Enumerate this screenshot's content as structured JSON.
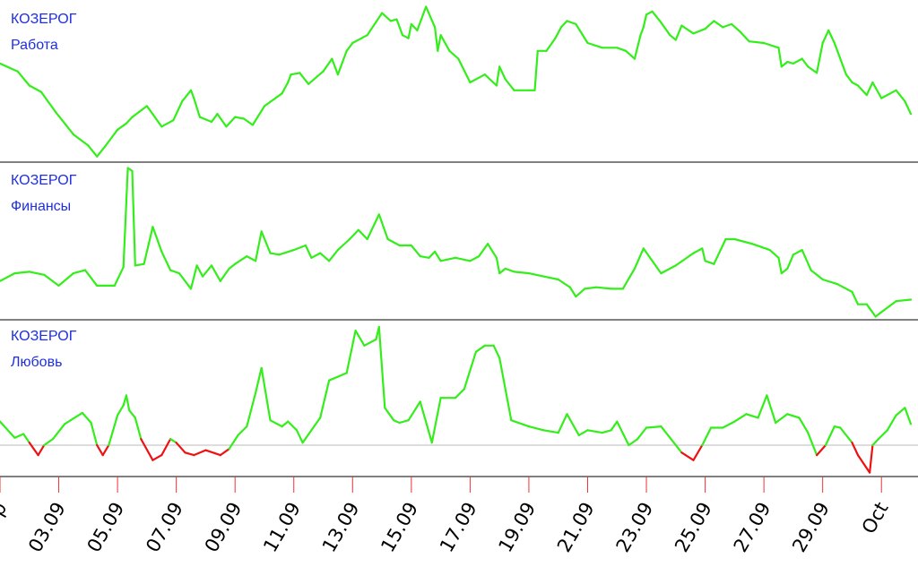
{
  "chart_data": {
    "type": "line",
    "x_axis": {
      "tick_labels": [
        "Sep",
        "03.09",
        "05.09",
        "07.09",
        "09.09",
        "11.09",
        "13.09",
        "15.09",
        "17.09",
        "19.09",
        "21.09",
        "23.09",
        "25.09",
        "27.09",
        "29.09",
        "Oct"
      ],
      "label_rotation_deg": -60
    },
    "colors": {
      "line_positive": "#33ee1a",
      "line_negative": "#ee1111",
      "panel_title": "#1f2fe0",
      "separator": "#000000",
      "tick": "#ee3333",
      "baseline": "#bbbbbb"
    },
    "panels": [
      {
        "name": "work",
        "title": [
          "КОЗЕРОГ",
          "Работа"
        ],
        "ylim": [
          0,
          100
        ],
        "baseline": null,
        "points": [
          [
            0.0,
            62
          ],
          [
            0.6,
            57
          ],
          [
            1.0,
            48
          ],
          [
            1.4,
            44
          ],
          [
            1.9,
            31
          ],
          [
            2.5,
            17
          ],
          [
            3.0,
            10
          ],
          [
            3.3,
            3
          ],
          [
            3.6,
            10
          ],
          [
            4.0,
            20
          ],
          [
            4.3,
            24
          ],
          [
            4.5,
            28
          ],
          [
            5.0,
            35
          ],
          [
            5.5,
            22
          ],
          [
            5.9,
            26
          ],
          [
            6.2,
            38
          ],
          [
            6.5,
            45
          ],
          [
            6.6,
            40
          ],
          [
            6.8,
            28
          ],
          [
            7.2,
            25
          ],
          [
            7.4,
            30
          ],
          [
            7.7,
            22
          ],
          [
            8.0,
            28
          ],
          [
            8.3,
            27
          ],
          [
            8.6,
            23
          ],
          [
            9.0,
            35
          ],
          [
            9.6,
            43
          ],
          [
            9.8,
            50
          ],
          [
            9.9,
            55
          ],
          [
            10.2,
            56
          ],
          [
            10.5,
            49
          ],
          [
            11.0,
            57
          ],
          [
            11.3,
            65
          ],
          [
            11.5,
            55
          ],
          [
            11.8,
            70
          ],
          [
            12.0,
            75
          ],
          [
            12.5,
            80
          ],
          [
            13.0,
            94
          ],
          [
            13.3,
            89
          ],
          [
            13.5,
            90
          ],
          [
            13.7,
            80
          ],
          [
            13.9,
            78
          ],
          [
            14.0,
            87
          ],
          [
            14.2,
            83
          ],
          [
            14.5,
            98
          ],
          [
            14.8,
            85
          ],
          [
            14.9,
            70
          ],
          [
            15.0,
            80
          ],
          [
            15.3,
            70
          ],
          [
            15.6,
            65
          ],
          [
            16.0,
            50
          ],
          [
            16.5,
            55
          ],
          [
            16.9,
            48
          ],
          [
            17.0,
            60
          ],
          [
            17.2,
            52
          ],
          [
            17.5,
            45
          ],
          [
            18.0,
            45
          ],
          [
            18.2,
            45
          ],
          [
            18.3,
            70
          ],
          [
            18.6,
            70
          ],
          [
            18.9,
            78
          ],
          [
            19.1,
            85
          ],
          [
            19.3,
            89
          ],
          [
            19.6,
            87
          ],
          [
            20.0,
            75
          ],
          [
            20.5,
            72
          ],
          [
            21.0,
            72
          ],
          [
            21.3,
            70
          ],
          [
            21.6,
            65
          ],
          [
            21.8,
            80
          ],
          [
            21.9,
            85
          ],
          [
            22.0,
            93
          ],
          [
            22.2,
            95
          ],
          [
            22.5,
            88
          ],
          [
            22.8,
            80
          ],
          [
            23.0,
            77
          ],
          [
            23.2,
            86
          ],
          [
            23.6,
            81
          ],
          [
            24.0,
            84
          ],
          [
            24.3,
            89
          ],
          [
            24.6,
            85
          ],
          [
            24.9,
            87
          ],
          [
            25.2,
            82
          ],
          [
            25.5,
            76
          ],
          [
            26.0,
            75
          ],
          [
            26.5,
            72
          ],
          [
            26.6,
            60
          ],
          [
            26.8,
            63
          ],
          [
            27.0,
            62
          ],
          [
            27.3,
            65
          ],
          [
            27.5,
            60
          ],
          [
            27.8,
            56
          ],
          [
            28.0,
            75
          ],
          [
            28.2,
            83
          ],
          [
            28.4,
            75
          ],
          [
            28.8,
            55
          ],
          [
            29.0,
            50
          ],
          [
            29.2,
            48
          ],
          [
            29.5,
            42
          ],
          [
            29.7,
            50
          ],
          [
            30.0,
            40
          ],
          [
            30.5,
            45
          ],
          [
            30.8,
            38
          ],
          [
            31.0,
            30
          ]
        ]
      },
      {
        "name": "finance",
        "title": [
          "КОЗЕРОГ",
          "Финансы"
        ],
        "ylim": [
          0,
          100
        ],
        "baseline": null,
        "points": [
          [
            0.0,
            25
          ],
          [
            0.5,
            30
          ],
          [
            1.0,
            31
          ],
          [
            1.5,
            29
          ],
          [
            2.0,
            22
          ],
          [
            2.5,
            30
          ],
          [
            2.9,
            32
          ],
          [
            3.3,
            22
          ],
          [
            3.6,
            22
          ],
          [
            3.9,
            22
          ],
          [
            4.2,
            34
          ],
          [
            4.35,
            98
          ],
          [
            4.5,
            96
          ],
          [
            4.6,
            35
          ],
          [
            4.9,
            36
          ],
          [
            5.2,
            60
          ],
          [
            5.5,
            44
          ],
          [
            5.8,
            32
          ],
          [
            6.1,
            30
          ],
          [
            6.5,
            20
          ],
          [
            6.7,
            35
          ],
          [
            6.9,
            28
          ],
          [
            7.2,
            35
          ],
          [
            7.5,
            25
          ],
          [
            7.8,
            33
          ],
          [
            8.0,
            36
          ],
          [
            8.4,
            41
          ],
          [
            8.7,
            38
          ],
          [
            8.9,
            57
          ],
          [
            9.2,
            43
          ],
          [
            9.5,
            42
          ],
          [
            10.0,
            45
          ],
          [
            10.4,
            48
          ],
          [
            10.6,
            40
          ],
          [
            10.9,
            43
          ],
          [
            11.2,
            38
          ],
          [
            11.5,
            45
          ],
          [
            11.9,
            52
          ],
          [
            12.2,
            58
          ],
          [
            12.5,
            52
          ],
          [
            12.9,
            68
          ],
          [
            13.2,
            52
          ],
          [
            13.6,
            48
          ],
          [
            14.0,
            48
          ],
          [
            14.3,
            41
          ],
          [
            14.6,
            40
          ],
          [
            14.8,
            44
          ],
          [
            15.0,
            38
          ],
          [
            15.5,
            40
          ],
          [
            16.0,
            38
          ],
          [
            16.3,
            41
          ],
          [
            16.6,
            49
          ],
          [
            16.9,
            40
          ],
          [
            17.0,
            30
          ],
          [
            17.2,
            33
          ],
          [
            17.5,
            31
          ],
          [
            18.0,
            30
          ],
          [
            18.5,
            28
          ],
          [
            19.0,
            26
          ],
          [
            19.4,
            21
          ],
          [
            19.6,
            15
          ],
          [
            19.9,
            20
          ],
          [
            20.3,
            21
          ],
          [
            20.8,
            20
          ],
          [
            21.2,
            20
          ],
          [
            21.6,
            33
          ],
          [
            21.9,
            46
          ],
          [
            22.2,
            38
          ],
          [
            22.5,
            30
          ],
          [
            23.0,
            35
          ],
          [
            23.6,
            43
          ],
          [
            23.9,
            46
          ],
          [
            24.0,
            38
          ],
          [
            24.3,
            36
          ],
          [
            24.7,
            52
          ],
          [
            25.0,
            52
          ],
          [
            25.6,
            49
          ],
          [
            26.2,
            45
          ],
          [
            26.5,
            40
          ],
          [
            26.6,
            30
          ],
          [
            26.8,
            33
          ],
          [
            27.0,
            42
          ],
          [
            27.3,
            45
          ],
          [
            27.6,
            32
          ],
          [
            28.0,
            26
          ],
          [
            28.5,
            23
          ],
          [
            29.0,
            18
          ],
          [
            29.2,
            10
          ],
          [
            29.5,
            10
          ],
          [
            29.8,
            2
          ],
          [
            30.0,
            5
          ],
          [
            30.5,
            12
          ],
          [
            31.0,
            13
          ]
        ]
      },
      {
        "name": "love",
        "title": [
          "КОЗЕРОГ",
          "Любовь"
        ],
        "ylim": [
          -20,
          100
        ],
        "baseline": 0,
        "points": [
          [
            0.0,
            19
          ],
          [
            0.5,
            6
          ],
          [
            0.8,
            9
          ],
          [
            1.0,
            2
          ],
          [
            1.3,
            -8
          ],
          [
            1.5,
            0
          ],
          [
            1.8,
            5
          ],
          [
            2.2,
            17
          ],
          [
            2.8,
            26
          ],
          [
            3.1,
            18
          ],
          [
            3.3,
            0
          ],
          [
            3.5,
            -8
          ],
          [
            3.7,
            0
          ],
          [
            4.0,
            24
          ],
          [
            4.2,
            32
          ],
          [
            4.3,
            40
          ],
          [
            4.4,
            28
          ],
          [
            4.6,
            22
          ],
          [
            4.8,
            5
          ],
          [
            5.2,
            -12
          ],
          [
            5.5,
            -8
          ],
          [
            5.8,
            5
          ],
          [
            6.0,
            2
          ],
          [
            6.3,
            -6
          ],
          [
            6.6,
            -8
          ],
          [
            7.0,
            -4
          ],
          [
            7.5,
            -8
          ],
          [
            7.8,
            -3
          ],
          [
            8.1,
            8
          ],
          [
            8.4,
            15
          ],
          [
            8.7,
            42
          ],
          [
            8.9,
            62
          ],
          [
            9.2,
            20
          ],
          [
            9.6,
            15
          ],
          [
            9.8,
            19
          ],
          [
            10.1,
            12
          ],
          [
            10.3,
            2
          ],
          [
            10.6,
            12
          ],
          [
            10.9,
            22
          ],
          [
            11.2,
            52
          ],
          [
            11.8,
            58
          ],
          [
            12.1,
            92
          ],
          [
            12.4,
            80
          ],
          [
            12.8,
            85
          ],
          [
            12.9,
            95
          ],
          [
            13.1,
            30
          ],
          [
            13.4,
            20
          ],
          [
            13.6,
            18
          ],
          [
            13.9,
            20
          ],
          [
            14.3,
            35
          ],
          [
            14.7,
            2
          ],
          [
            15.0,
            38
          ],
          [
            15.5,
            38
          ],
          [
            15.8,
            45
          ],
          [
            16.2,
            75
          ],
          [
            16.5,
            80
          ],
          [
            16.8,
            80
          ],
          [
            17.0,
            70
          ],
          [
            17.4,
            20
          ],
          [
            18.0,
            15
          ],
          [
            18.5,
            12
          ],
          [
            19.0,
            10
          ],
          [
            19.3,
            25
          ],
          [
            19.7,
            8
          ],
          [
            20.0,
            12
          ],
          [
            20.5,
            10
          ],
          [
            20.8,
            12
          ],
          [
            21.0,
            19
          ],
          [
            21.4,
            0
          ],
          [
            21.7,
            5
          ],
          [
            22.0,
            14
          ],
          [
            22.5,
            15
          ],
          [
            23.2,
            -6
          ],
          [
            23.6,
            -12
          ],
          [
            23.9,
            0
          ],
          [
            24.2,
            14
          ],
          [
            24.6,
            14
          ],
          [
            25.0,
            19
          ],
          [
            25.4,
            25
          ],
          [
            25.8,
            22
          ],
          [
            26.1,
            40
          ],
          [
            26.4,
            18
          ],
          [
            26.8,
            25
          ],
          [
            27.2,
            22
          ],
          [
            27.5,
            10
          ],
          [
            27.8,
            -8
          ],
          [
            28.1,
            0
          ],
          [
            28.4,
            15
          ],
          [
            28.6,
            14
          ],
          [
            29.0,
            2
          ],
          [
            29.2,
            -8
          ],
          [
            29.6,
            -22
          ],
          [
            29.7,
            0
          ],
          [
            29.9,
            5
          ],
          [
            30.2,
            12
          ],
          [
            30.5,
            24
          ],
          [
            30.8,
            30
          ],
          [
            31.0,
            17
          ]
        ]
      }
    ]
  }
}
